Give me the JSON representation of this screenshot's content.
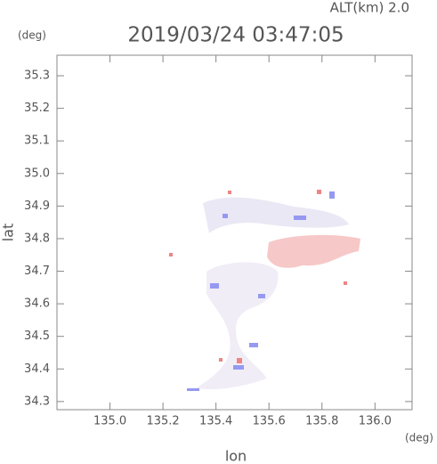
{
  "chart_data": {
    "type": "map",
    "title": "2019/03/24 03:47:05",
    "annotation": "ALT(km) 2.0",
    "y_unit": "(deg)",
    "x_unit": "(deg)",
    "xlabel": "lon",
    "ylabel": "lat",
    "xlim": [
      134.8,
      136.14
    ],
    "ylim": [
      34.275,
      35.363
    ],
    "xticks": [
      {
        "value": 135,
        "label": "135.0"
      },
      135.2,
      135.4,
      135.6,
      135.8,
      {
        "value": 136,
        "label": "136.0"
      }
    ],
    "yticks": [
      34.3,
      34.4,
      34.5,
      34.6,
      34.7,
      34.8,
      34.9,
      {
        "value": 35,
        "label": "35.0"
      },
      35.1,
      35.2,
      35.3
    ],
    "frame_color": "#888888",
    "text_color": "#555555"
  }
}
